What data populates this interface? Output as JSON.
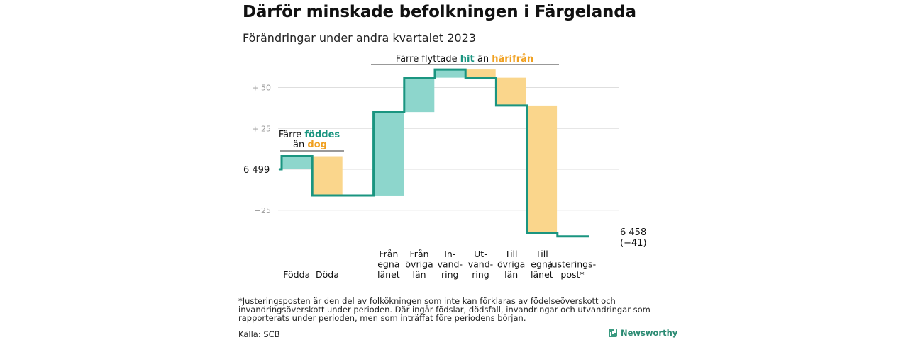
{
  "title": "Därför minskade befolkningen i Färgelanda",
  "subtitle": "Förändringar under andra kvartalet 2023",
  "colors": {
    "line": "#1a9580",
    "positive": "#8dd6cc",
    "negative": "#fad68c",
    "grid": "#dedede",
    "tick": "#999999"
  },
  "chart_data": {
    "type": "waterfall",
    "start_value": 6499,
    "end_value": 6458,
    "end_label": "6 458",
    "end_change_label": "(−41)",
    "start_label": "6 499",
    "y_ticks": [
      {
        "value": 50,
        "label": "+  50"
      },
      {
        "value": 25,
        "label": "+  25"
      },
      {
        "value": -25,
        "label": "−25"
      }
    ],
    "ylim": [
      -45,
      65
    ],
    "steps": [
      {
        "label": [
          "Födda"
        ],
        "change": 8
      },
      {
        "label": [
          "Döda"
        ],
        "change": -24
      },
      {
        "label": [
          "Från",
          "egna",
          "länet"
        ],
        "change": 51
      },
      {
        "label": [
          "Från",
          "övriga",
          "län"
        ],
        "change": 21
      },
      {
        "label": [
          "In-",
          "vand-",
          "ring"
        ],
        "change": 5
      },
      {
        "label": [
          "Ut-",
          "vand-",
          "ring"
        ],
        "change": -5
      },
      {
        "label": [
          "Till",
          "övriga",
          "län"
        ],
        "change": -17
      },
      {
        "label": [
          "Till",
          "egna",
          "länet"
        ],
        "change": -78
      },
      {
        "label": [
          "Justerings-",
          "post*"
        ],
        "change": -2
      }
    ],
    "annotations": [
      {
        "text_parts": [
          [
            "Färre ",
            "plain"
          ],
          [
            "föddes",
            "pos"
          ]
        ],
        "text_parts2": [
          [
            "än ",
            "plain"
          ],
          [
            "dog",
            "neg"
          ]
        ]
      },
      {
        "text_parts": [
          [
            "Färre flyttade ",
            "plain"
          ],
          [
            "hit",
            "pos"
          ],
          [
            " än ",
            "plain"
          ],
          [
            "härifrån",
            "neg"
          ]
        ]
      }
    ]
  },
  "footnote": "*Justeringsposten är den del av folkökningen som inte kan förklaras av födelseöverskott och invandringsöverskott under perioden. Där ingår födslar, dödsfall, invandringar och utvandringar som rapporterats under perioden, men som inträffat före periodens början.",
  "source": "Källa: SCB",
  "brand": "Newsworthy"
}
